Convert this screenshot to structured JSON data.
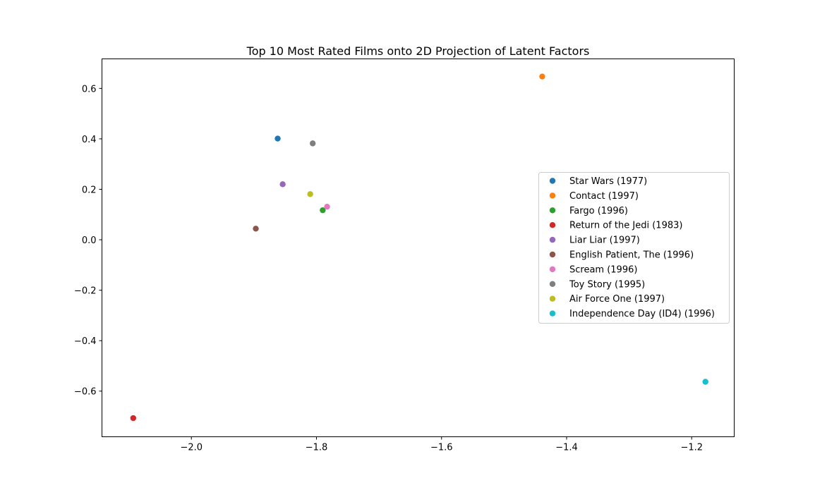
{
  "chart_data": {
    "type": "scatter",
    "title": "Top 10 Most Rated Films onto 2D Projection of Latent Factors",
    "xlabel": "",
    "ylabel": "",
    "xlim": [
      -2.143,
      -1.132
    ],
    "ylim": [
      -0.781,
      0.717
    ],
    "xticks": [
      -2.0,
      -1.8,
      -1.6,
      -1.4,
      -1.2
    ],
    "xtick_labels": [
      "−2.0",
      "−1.8",
      "−1.6",
      "−1.4",
      "−1.2"
    ],
    "yticks": [
      0.6,
      0.4,
      0.2,
      0.0,
      -0.2,
      -0.4,
      -0.6
    ],
    "ytick_labels": [
      "0.6",
      "0.4",
      "0.2",
      "0.0",
      "−0.2",
      "−0.4",
      "−0.6"
    ],
    "grid": false,
    "legend_position": "center-right",
    "series": [
      {
        "name": "Star Wars (1977)",
        "color": "#1f77b4",
        "x": -1.862,
        "y": 0.401
      },
      {
        "name": "Contact (1997)",
        "color": "#ff7f0e",
        "x": -1.439,
        "y": 0.647
      },
      {
        "name": "Fargo (1996)",
        "color": "#2ca02c",
        "x": -1.79,
        "y": 0.117
      },
      {
        "name": "Return of the Jedi (1983)",
        "color": "#d62728",
        "x": -2.093,
        "y": -0.707
      },
      {
        "name": "Liar Liar (1997)",
        "color": "#9467bd",
        "x": -1.854,
        "y": 0.22
      },
      {
        "name": "English Patient, The (1996)",
        "color": "#8c564b",
        "x": -1.897,
        "y": 0.044
      },
      {
        "name": "Scream (1996)",
        "color": "#e377c2",
        "x": -1.783,
        "y": 0.131
      },
      {
        "name": "Toy Story (1995)",
        "color": "#7f7f7f",
        "x": -1.806,
        "y": 0.382
      },
      {
        "name": "Air Force One (1997)",
        "color": "#bcbd22",
        "x": -1.81,
        "y": 0.181
      },
      {
        "name": "Independence Day (ID4) (1996)",
        "color": "#17becf",
        "x": -1.178,
        "y": -0.563
      }
    ]
  }
}
